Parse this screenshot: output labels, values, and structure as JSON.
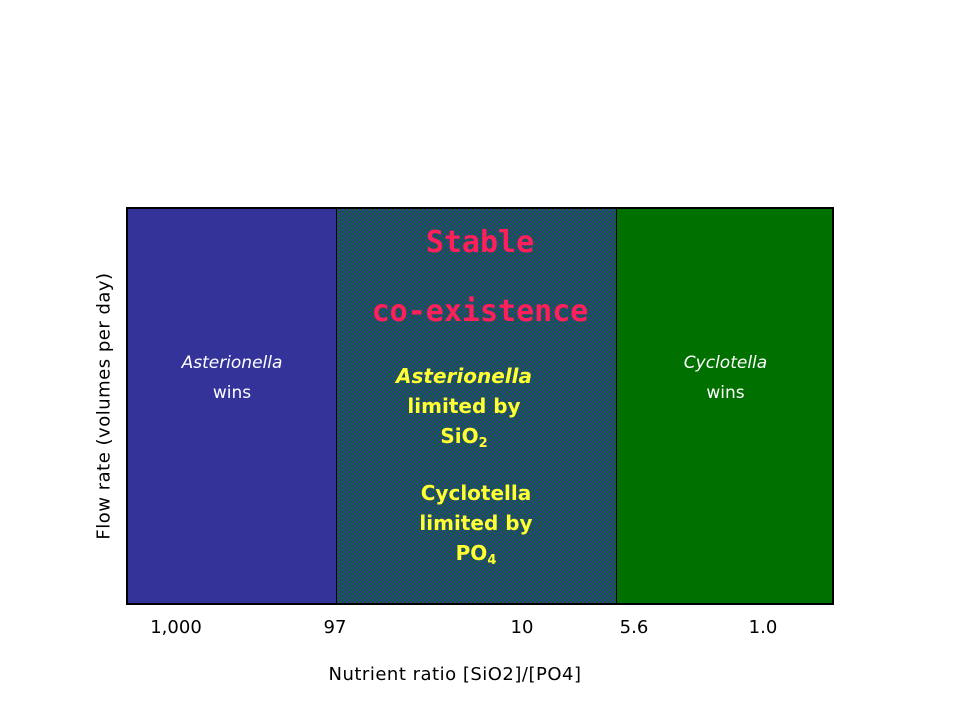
{
  "diagram": {
    "regions": {
      "left": {
        "species": "Asterionella",
        "outcome": "wins"
      },
      "right": {
        "species": "Cyclotella",
        "outcome": "wins"
      },
      "middle": {
        "title_line1": "Stable",
        "title_line2": "co-existence",
        "asterionella": {
          "name": "Asterionella",
          "limited_by": "limited by",
          "nutrient": "SiO",
          "nutrient_sub": "2"
        },
        "cyclotella": {
          "name": "Cyclotella",
          "limited_by": "limited by",
          "nutrient": "PO",
          "nutrient_sub": "4"
        }
      }
    },
    "x_ticks": [
      "1,000",
      "97",
      "10",
      "5.6",
      "1.0"
    ],
    "x_label": "Nutrient ratio [SiO2]/[PO4]",
    "y_label": "Flow rate (volumes per day)",
    "colors": {
      "left_region": "#333399",
      "middle_region": "checkered blue/green",
      "right_region": "#007000",
      "stable_text": "#ff1f5a",
      "limited_text": "#ffff33",
      "wins_text": "#ffffff"
    }
  }
}
